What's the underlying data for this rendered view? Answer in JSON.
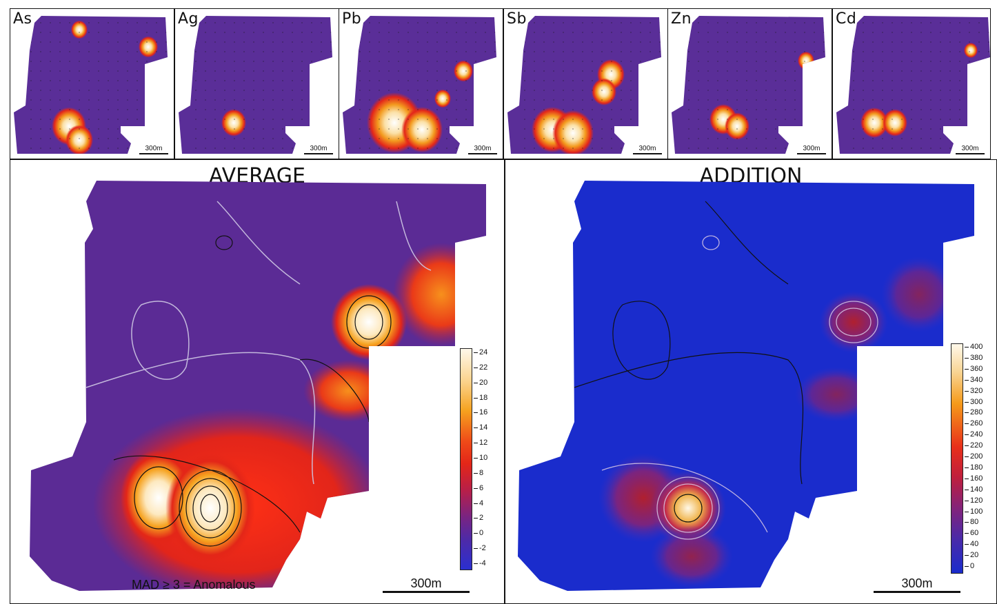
{
  "small_maps": [
    {
      "label": "As",
      "scale": "300m"
    },
    {
      "label": "Ag",
      "scale": "300m"
    },
    {
      "label": "Pb",
      "scale": "300m"
    },
    {
      "label": "Sb",
      "scale": "300m"
    },
    {
      "label": "Zn",
      "scale": "300m"
    },
    {
      "label": "Cd",
      "scale": "300m"
    }
  ],
  "average": {
    "title": "AVERAGE",
    "note": "MAD ≥ 3 = Anomalous",
    "scale": "300m",
    "colorbar_ticks": [
      "24",
      "22",
      "20",
      "18",
      "16",
      "14",
      "12",
      "10",
      "8",
      "6",
      "4",
      "2",
      "0",
      "-2",
      "-4"
    ]
  },
  "addition": {
    "title": "ADDITION",
    "scale": "300m",
    "colorbar_ticks": [
      "400",
      "380",
      "360",
      "340",
      "320",
      "300",
      "280",
      "260",
      "240",
      "220",
      "200",
      "180",
      "160",
      "140",
      "120",
      "100",
      "80",
      "60",
      "40",
      "20",
      "0"
    ]
  },
  "colors": {
    "low": "#2b2fd0",
    "mid": "#5a2a9a",
    "high_red": "#e8201a",
    "high_orange": "#f59a1a",
    "peak": "#fff4dc"
  }
}
